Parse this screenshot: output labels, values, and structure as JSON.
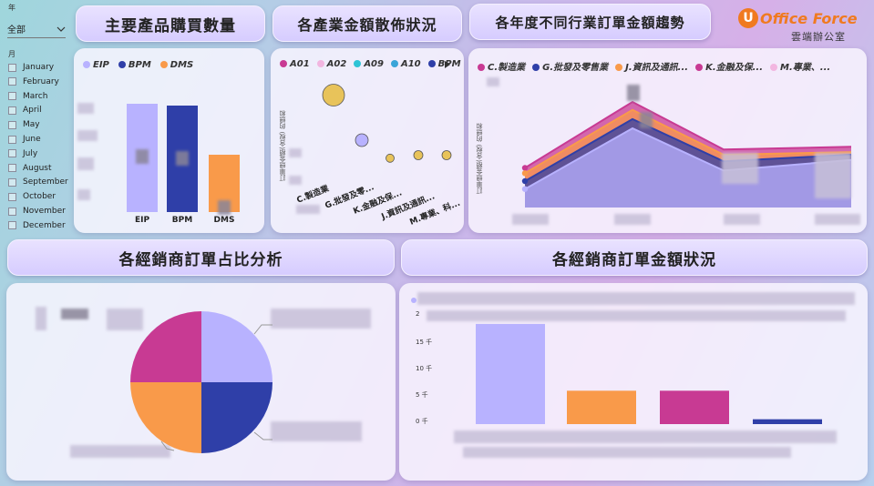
{
  "slicers": {
    "year_label": "年",
    "year_value": "全部",
    "month_label": "月",
    "months": [
      "January",
      "February",
      "March",
      "April",
      "May",
      "June",
      "July",
      "August",
      "September",
      "October",
      "November",
      "December"
    ]
  },
  "titles": {
    "products": "主要產品購買數量",
    "scatter": "各產業金額散佈狀況",
    "trend": "各年度不同行業訂單金額趨勢",
    "dealer_share": "各經銷商訂單占比分析",
    "dealer_amount": "各經銷商訂單金額狀況"
  },
  "logo": {
    "brand": "Office Force",
    "sub": "雲端辦公室",
    "mark": "U"
  },
  "colors": {
    "eip": "#b8b2ff",
    "bpm": "#2f3fa8",
    "dms": "#f99a4a",
    "magenta": "#c83a93",
    "gold": "#e8c35a",
    "accent_pink": "#f2b6e0"
  },
  "chart_data": [
    {
      "type": "bar",
      "categories": [
        "EIP",
        "BPM",
        "DMS"
      ],
      "values": [
        100,
        98,
        53
      ],
      "ylim": [
        0,
        105
      ],
      "legend": [
        "EIP",
        "BPM",
        "DMS"
      ],
      "legend_position": "top-left"
    },
    {
      "type": "scatter",
      "legend": [
        "A01",
        "A02",
        "A09",
        "A10",
        "BPM"
      ],
      "ylabel": "訂單總金額(含稅) 的總和",
      "categories": [
        "C.製造業",
        "G.批發及零...",
        "K.金融及保...",
        "J.資訊及通訊...",
        "M.專業、科..."
      ],
      "points": [
        {
          "x": 1,
          "y": 85,
          "size": 24,
          "color": "#e8c35a"
        },
        {
          "x": 2,
          "y": 40,
          "size": 14,
          "color": "#b8b2ff"
        },
        {
          "x": 3,
          "y": 22,
          "size": 9,
          "color": "#e8c35a"
        },
        {
          "x": 4,
          "y": 25,
          "size": 10,
          "color": "#e8c35a"
        },
        {
          "x": 5,
          "y": 25,
          "size": 10,
          "color": "#e8c35a"
        }
      ],
      "ylim": [
        0,
        100
      ]
    },
    {
      "type": "area",
      "legend": [
        "C.製造業",
        "G.批發及零售業",
        "J.資訊及通訊...",
        "K.金融及保...",
        "M.專業、..."
      ],
      "ylabel": "訂單總金額(含稅) 的總和",
      "x": [
        1,
        2,
        3,
        4
      ],
      "series": [
        {
          "name": "C.製造業",
          "color": "#c83a93",
          "values": [
            30,
            80,
            44,
            46
          ]
        },
        {
          "name": "J.資訊及通訊...",
          "color": "#f99a4a",
          "values": [
            26,
            74,
            40,
            42
          ]
        },
        {
          "name": "G.批發及零售業",
          "color": "#2f3fa8",
          "values": [
            20,
            67,
            35,
            40
          ]
        },
        {
          "name": "M.專業、...",
          "color": "#b8b2ff",
          "values": [
            14,
            60,
            28,
            36
          ]
        }
      ],
      "ylim": [
        0,
        100
      ]
    },
    {
      "type": "pie",
      "slices": [
        {
          "value": 25,
          "color": "#b8b2ff"
        },
        {
          "value": 25,
          "color": "#2f3fa8"
        },
        {
          "value": 25,
          "color": "#f99a4a"
        },
        {
          "value": 25,
          "color": "#c83a93"
        }
      ]
    },
    {
      "type": "bar",
      "ticks": [
        "2",
        "15 千",
        "10 千",
        "5 千",
        "0 千"
      ],
      "values": [
        16.5,
        5.5,
        5.5,
        0.8
      ],
      "colors": [
        "#b8b2ff",
        "#f99a4a",
        "#c83a93",
        "#2f3fa8"
      ],
      "ylim": [
        0,
        20
      ]
    }
  ]
}
